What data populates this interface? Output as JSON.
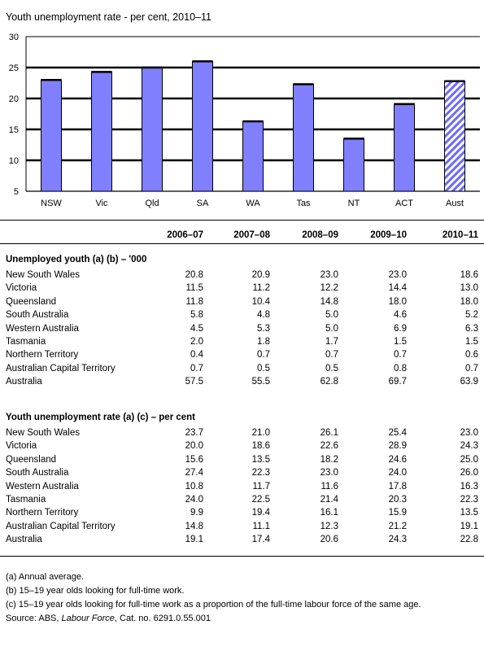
{
  "chart_data": {
    "type": "bar",
    "title": "Youth unemployment rate - per cent, 2010–11",
    "categories": [
      "NSW",
      "Vic",
      "Qld",
      "SA",
      "WA",
      "Tas",
      "NT",
      "ACT",
      "Aust"
    ],
    "values": [
      23.0,
      24.3,
      25.0,
      26.0,
      16.3,
      22.3,
      13.5,
      19.1,
      22.8
    ],
    "highlighted_category": "Aust",
    "ylim": [
      5,
      30
    ],
    "yticks": [
      5,
      10,
      15,
      20,
      25,
      30
    ],
    "grid": true,
    "bar_color": "#8080ff",
    "highlight_pattern": "diagonal-hatch",
    "xlabel": "",
    "ylabel": ""
  },
  "table": {
    "years": [
      "2006–07",
      "2007–08",
      "2008–09",
      "2009–10",
      "2010–11"
    ],
    "sections": [
      {
        "title": "Unemployed youth (a) (b) – '000",
        "rows": [
          {
            "label": "New South Wales",
            "values": [
              "20.8",
              "20.9",
              "23.0",
              "23.0",
              "18.6"
            ]
          },
          {
            "label": "Victoria",
            "values": [
              "11.5",
              "11.2",
              "12.2",
              "14.4",
              "13.0"
            ]
          },
          {
            "label": "Queensland",
            "values": [
              "11.8",
              "10.4",
              "14.8",
              "18.0",
              "18.0"
            ]
          },
          {
            "label": "South Australia",
            "values": [
              "5.8",
              "4.8",
              "5.0",
              "4.6",
              "5.2"
            ]
          },
          {
            "label": "Western Australia",
            "values": [
              "4.5",
              "5.3",
              "5.0",
              "6.9",
              "6.3"
            ]
          },
          {
            "label": "Tasmania",
            "values": [
              "2.0",
              "1.8",
              "1.7",
              "1.5",
              "1.5"
            ]
          },
          {
            "label": "Northern Territory",
            "values": [
              "0.4",
              "0.7",
              "0.7",
              "0.7",
              "0.6"
            ]
          },
          {
            "label": "Australian Capital Territory",
            "values": [
              "0.7",
              "0.5",
              "0.5",
              "0.8",
              "0.7"
            ]
          },
          {
            "label": "Australia",
            "values": [
              "57.5",
              "55.5",
              "62.8",
              "69.7",
              "63.9"
            ]
          }
        ]
      },
      {
        "title": "Youth unemployment rate (a) (c) – per cent",
        "rows": [
          {
            "label": "New South Wales",
            "values": [
              "23.7",
              "21.0",
              "26.1",
              "25.4",
              "23.0"
            ]
          },
          {
            "label": "Victoria",
            "values": [
              "20.0",
              "18.6",
              "22.6",
              "28.9",
              "24.3"
            ]
          },
          {
            "label": "Queensland",
            "values": [
              "15.6",
              "13.5",
              "18.2",
              "24.6",
              "25.0"
            ]
          },
          {
            "label": "South Australia",
            "values": [
              "27.4",
              "22.3",
              "23.0",
              "24.0",
              "26.0"
            ]
          },
          {
            "label": "Western Australia",
            "values": [
              "10.8",
              "11.7",
              "11.6",
              "17.8",
              "16.3"
            ]
          },
          {
            "label": "Tasmania",
            "values": [
              "24.0",
              "22.5",
              "21.4",
              "20.3",
              "22.3"
            ]
          },
          {
            "label": "Northern Territory",
            "values": [
              "9.9",
              "19.4",
              "16.1",
              "15.9",
              "13.5"
            ]
          },
          {
            "label": "Australian Capital Territory",
            "values": [
              "14.8",
              "11.1",
              "12.3",
              "21.2",
              "19.1"
            ]
          },
          {
            "label": "Australia",
            "values": [
              "19.1",
              "17.4",
              "20.6",
              "24.3",
              "22.8"
            ]
          }
        ]
      }
    ]
  },
  "notes": [
    "(a) Annual average.",
    "(b) 15–19 year olds looking for full-time work.",
    "(c) 15–19 year olds looking for full-time work as a proportion of the full-time labour force of the same age."
  ],
  "source": {
    "prefix": "Source: ABS, ",
    "title": "Labour Force",
    "suffix": ", Cat. no. 6291.0.55.001"
  }
}
